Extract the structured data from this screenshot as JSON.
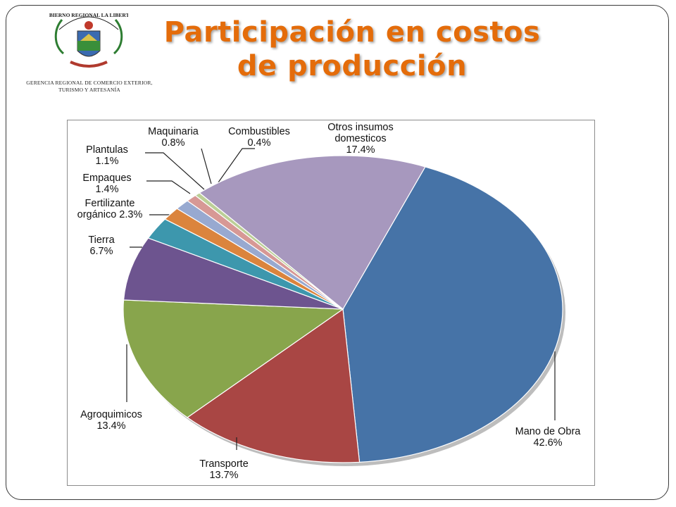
{
  "header": {
    "title_line1": "Participación en costos",
    "title_line2": "de producción",
    "org_line1": "GERENCIA REGIONAL DE COMERCIO EXTERIOR,",
    "org_line2": "TURISMO Y ARTESANÍA",
    "logo_text": "GOBIERNO REGIONAL LA LIBERTAD"
  },
  "colors": {
    "title": "#e46c0a"
  },
  "chart_data": {
    "type": "pie",
    "title": "",
    "unit": "%",
    "slices": [
      {
        "name": "Mano de Obra",
        "value": 42.6,
        "label": "42.6%",
        "color": "#4673a7"
      },
      {
        "name": "Transporte",
        "value": 13.7,
        "label": "13.7%",
        "color": "#a94644"
      },
      {
        "name": "Agroquimicos",
        "value": 13.4,
        "label": "13.4%",
        "color": "#88a54c"
      },
      {
        "name": "Tierra",
        "value": 6.7,
        "label": "6.7%",
        "color": "#6d548f"
      },
      {
        "name": "Fertilizante orgánico",
        "value": 2.3,
        "label": "2.3%",
        "color": "#3d97ad"
      },
      {
        "name": "Empaques",
        "value": 1.4,
        "label": "1.4%",
        "color": "#db843d"
      },
      {
        "name": "Plantulas",
        "value": 1.1,
        "label": "1.1%",
        "color": "#98a9d0"
      },
      {
        "name": "Maquinaria",
        "value": 0.8,
        "label": "0.8%",
        "color": "#d79895"
      },
      {
        "name": "Combustibles",
        "value": 0.4,
        "label": "0.4%",
        "color": "#bccf97"
      },
      {
        "name": "Otros insumos domesticos",
        "value": 17.4,
        "label": "17.4%",
        "color": "#a798be"
      }
    ],
    "start_angle_deg": 68,
    "direction": "clockwise",
    "legend": "none",
    "data_labels": "outside with leader lines"
  }
}
